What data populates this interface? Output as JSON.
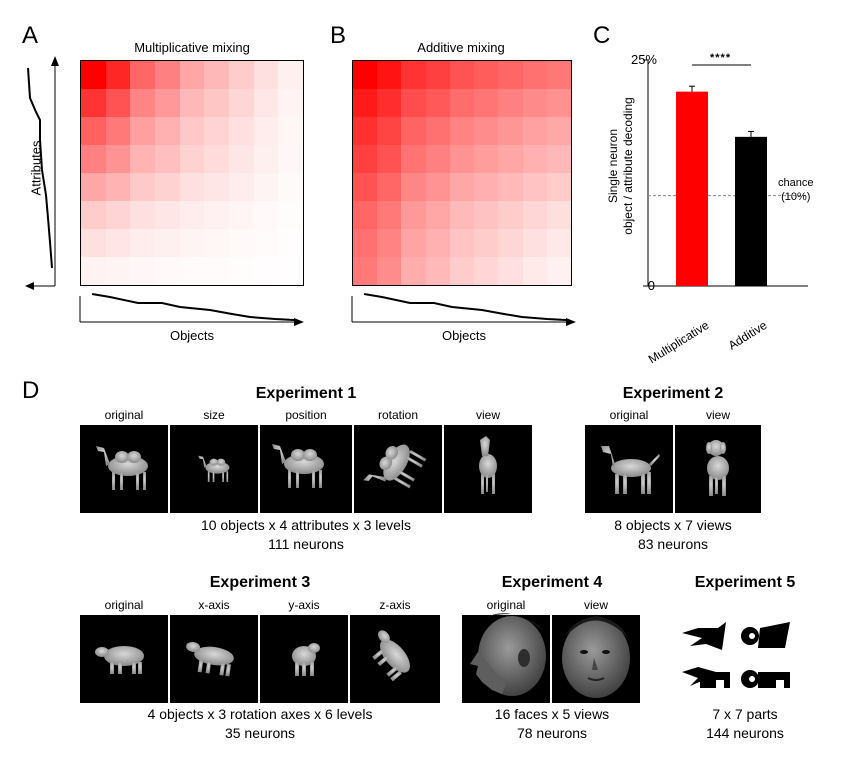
{
  "panels": {
    "A": {
      "letter": "A",
      "title": "Multiplicative mixing",
      "y_label": "Attributes",
      "x_label": "Objects"
    },
    "B": {
      "letter": "B",
      "title": "Additive mixing",
      "x_label": "Objects"
    },
    "C": {
      "letter": "C"
    },
    "D": {
      "letter": "D"
    }
  },
  "chart_data": {
    "type": "bar",
    "categories": [
      "Multiplicative",
      "Additive"
    ],
    "values": [
      21.5,
      16.5
    ],
    "errors": [
      0.6,
      0.6
    ],
    "ylim": [
      0,
      25
    ],
    "ytick_labels": [
      "0",
      "25%"
    ],
    "ylabel": "Single neuron object / attribute decoding",
    "ylabel_line1": "Single neuron",
    "ylabel_line2": "object / attribute decoding",
    "chance_value": 10,
    "chance_label_1": "chance",
    "chance_label_2": "(10%)",
    "significance": "****",
    "colors": [
      "#ff0000",
      "#000000"
    ]
  },
  "heatmaps": {
    "multiplicative": {
      "obj": [
        1.0,
        0.85,
        0.6,
        0.5,
        0.35,
        0.28,
        0.2,
        0.12,
        0.06
      ],
      "attr": [
        1.0,
        0.8,
        0.62,
        0.5,
        0.35,
        0.2,
        0.12,
        0.05
      ]
    },
    "additive": {
      "obj": [
        1.0,
        0.85,
        0.6,
        0.5,
        0.35,
        0.28,
        0.2,
        0.12,
        0.06
      ],
      "attr": [
        1.0,
        0.8,
        0.62,
        0.5,
        0.35,
        0.2,
        0.12,
        0.05
      ]
    }
  },
  "experiments": {
    "e1": {
      "title": "Experiment 1",
      "labels": [
        "original",
        "size",
        "position",
        "rotation",
        "view"
      ],
      "info1": "10 objects x 4 attributes x 3 levels",
      "info2": "111 neurons"
    },
    "e2": {
      "title": "Experiment 2",
      "labels": [
        "original",
        "view"
      ],
      "info1": "8 objects x 7 views",
      "info2": "83 neurons"
    },
    "e3": {
      "title": "Experiment 3",
      "labels": [
        "original",
        "x-axis",
        "y-axis",
        "z-axis"
      ],
      "info1": "4 objects x 3 rotation axes x 6 levels",
      "info2": "35 neurons"
    },
    "e4": {
      "title": "Experiment 4",
      "labels": [
        "original",
        "view"
      ],
      "info1": "16 faces x 5 views",
      "info2": "78 neurons"
    },
    "e5": {
      "title": "Experiment 5",
      "info1": "7 x 7 parts",
      "info2": "144 neurons"
    }
  }
}
